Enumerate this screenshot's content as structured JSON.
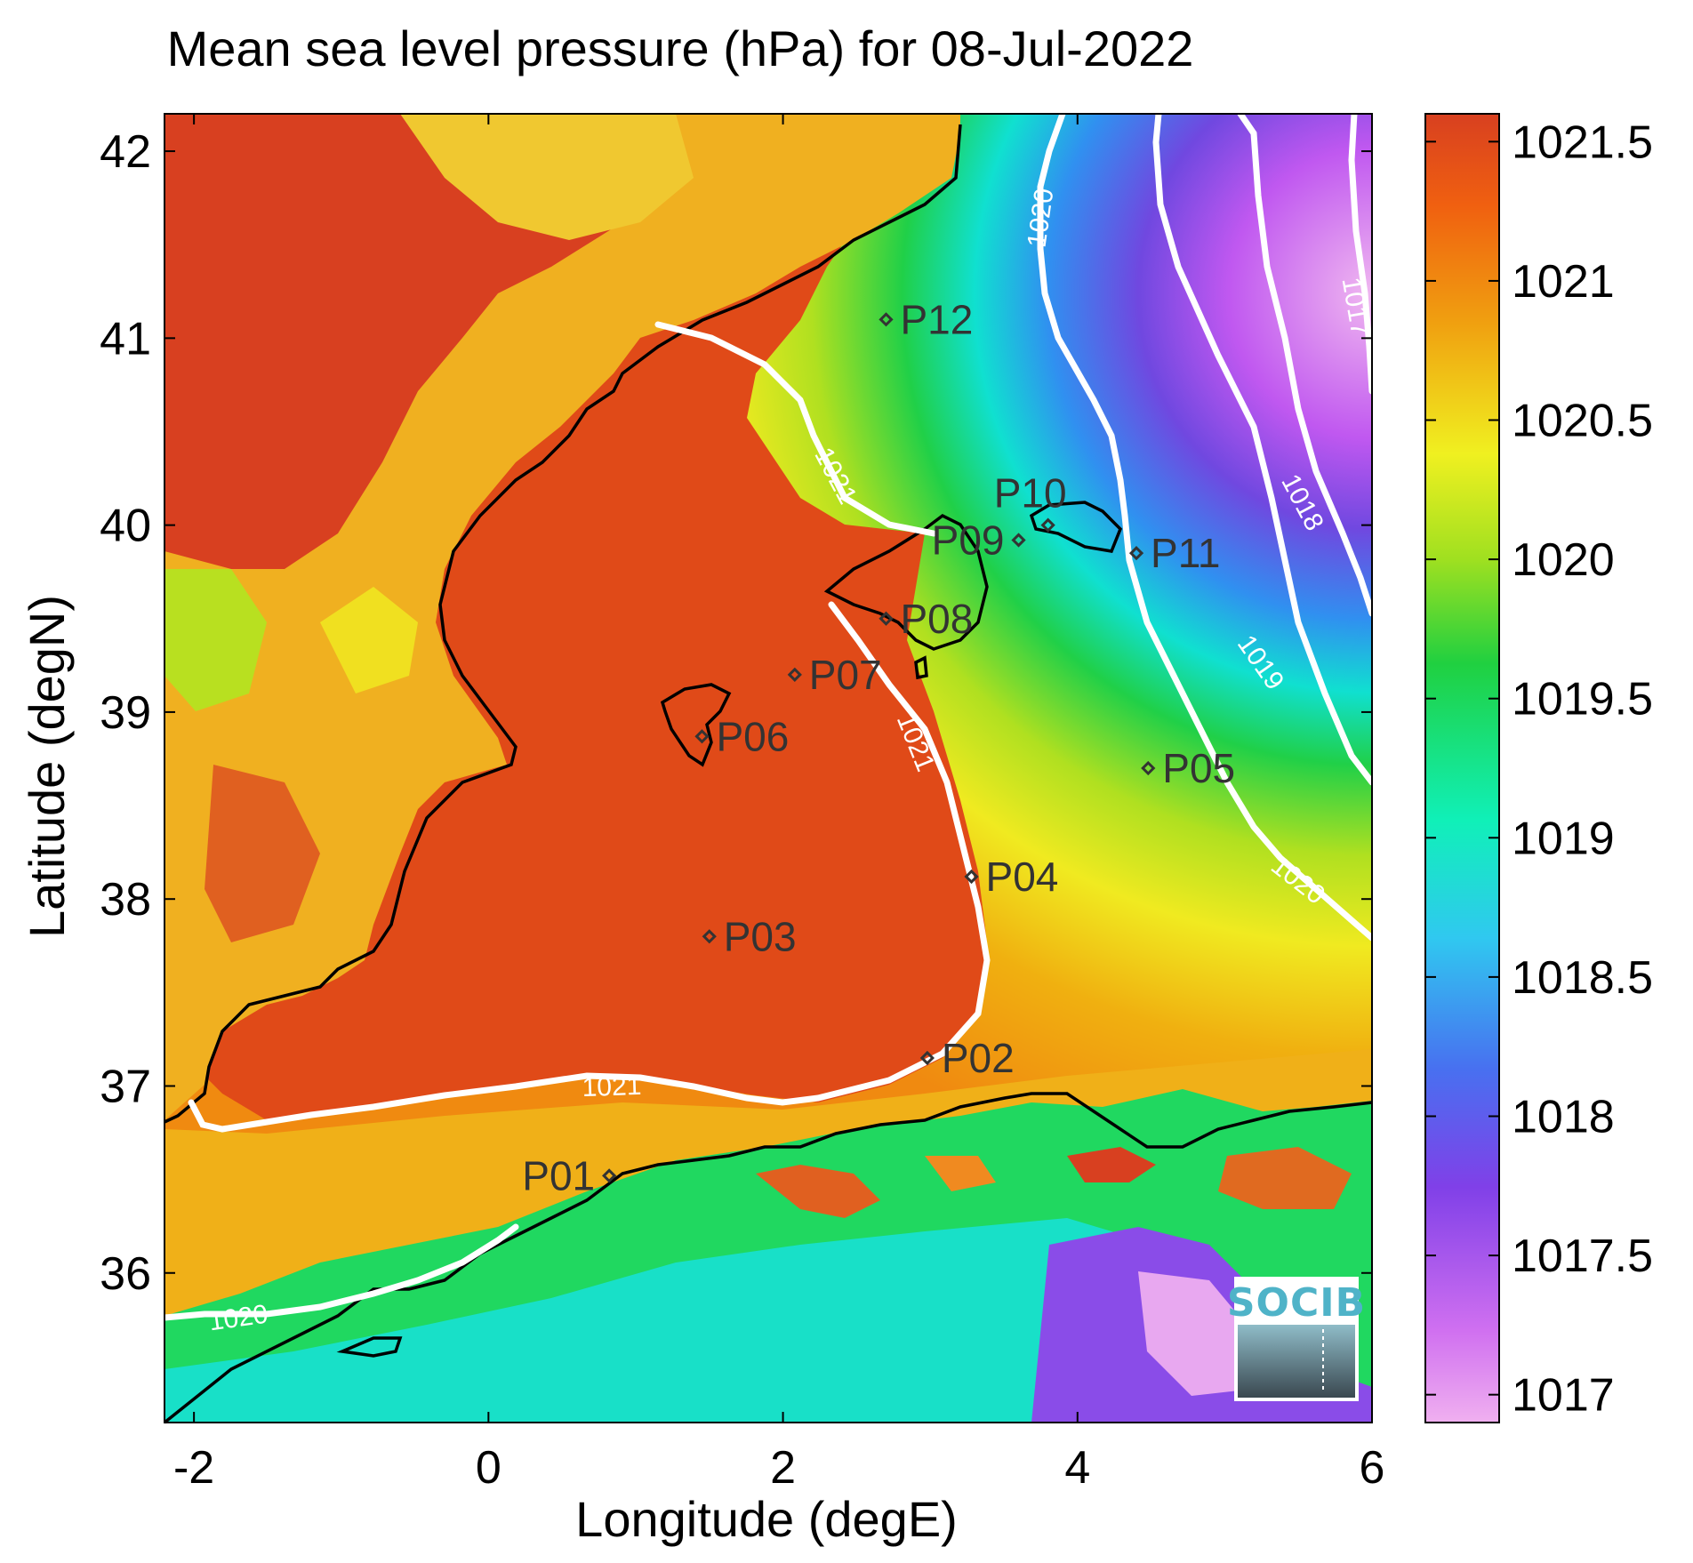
{
  "title": "Mean sea level pressure (hPa) for 08-Jul-2022",
  "xaxis": {
    "label": "Longitude (degE)",
    "range": [
      -2.2,
      6.0
    ],
    "ticks": [
      -2,
      0,
      2,
      4,
      6
    ],
    "tick_labels": [
      "-2",
      "0",
      "2",
      "4",
      "6"
    ]
  },
  "yaxis": {
    "label": "Latitude (degN)",
    "range": [
      35.2,
      42.2
    ],
    "ticks": [
      36,
      37,
      38,
      39,
      40,
      41,
      42
    ],
    "tick_labels": [
      "36",
      "37",
      "38",
      "39",
      "40",
      "41",
      "42"
    ]
  },
  "colorbar": {
    "range": [
      1016.9,
      1021.6
    ],
    "ticks": [
      1017,
      1017.5,
      1018,
      1018.5,
      1019,
      1019.5,
      1020,
      1020.5,
      1021,
      1021.5
    ],
    "tick_labels": [
      "1017",
      "1017.5",
      "1018",
      "1018.5",
      "1019",
      "1019.5",
      "1020",
      "1020.5",
      "1021",
      "1021.5"
    ],
    "colors": [
      "#f0b0f0",
      "#c050f0",
      "#7040e0",
      "#4070f0",
      "#30c8f0",
      "#10e8b0",
      "#20d040",
      "#a0e020",
      "#f0f020",
      "#f0a010",
      "#f06010",
      "#d84020"
    ]
  },
  "contours": [
    {
      "level": 1021,
      "label": "1021"
    },
    {
      "level": 1020,
      "label": "1020"
    },
    {
      "level": 1019,
      "label": "1019"
    },
    {
      "level": 1018,
      "label": "1018"
    },
    {
      "level": 1017,
      "label": "1017"
    }
  ],
  "stations": [
    {
      "id": "P01",
      "lon": 0.82,
      "lat": 36.52
    },
    {
      "id": "P02",
      "lon": 2.98,
      "lat": 37.15
    },
    {
      "id": "P03",
      "lon": 1.5,
      "lat": 37.8
    },
    {
      "id": "P04",
      "lon": 3.28,
      "lat": 38.12
    },
    {
      "id": "P05",
      "lon": 4.48,
      "lat": 38.7
    },
    {
      "id": "P06",
      "lon": 1.45,
      "lat": 38.87
    },
    {
      "id": "P07",
      "lon": 2.08,
      "lat": 39.2
    },
    {
      "id": "P08",
      "lon": 2.7,
      "lat": 39.5
    },
    {
      "id": "P09",
      "lon": 3.6,
      "lat": 39.92
    },
    {
      "id": "P10",
      "lon": 3.8,
      "lat": 40.0
    },
    {
      "id": "P11",
      "lon": 4.4,
      "lat": 39.85
    },
    {
      "id": "P12",
      "lon": 2.7,
      "lat": 41.1
    }
  ],
  "logo": {
    "text": "SOCIB"
  },
  "colors": {
    "coast": "#000000",
    "contour": "#ffffff",
    "station": "#333333",
    "land_high": "#d84020",
    "sea_high": "#e04a18"
  }
}
